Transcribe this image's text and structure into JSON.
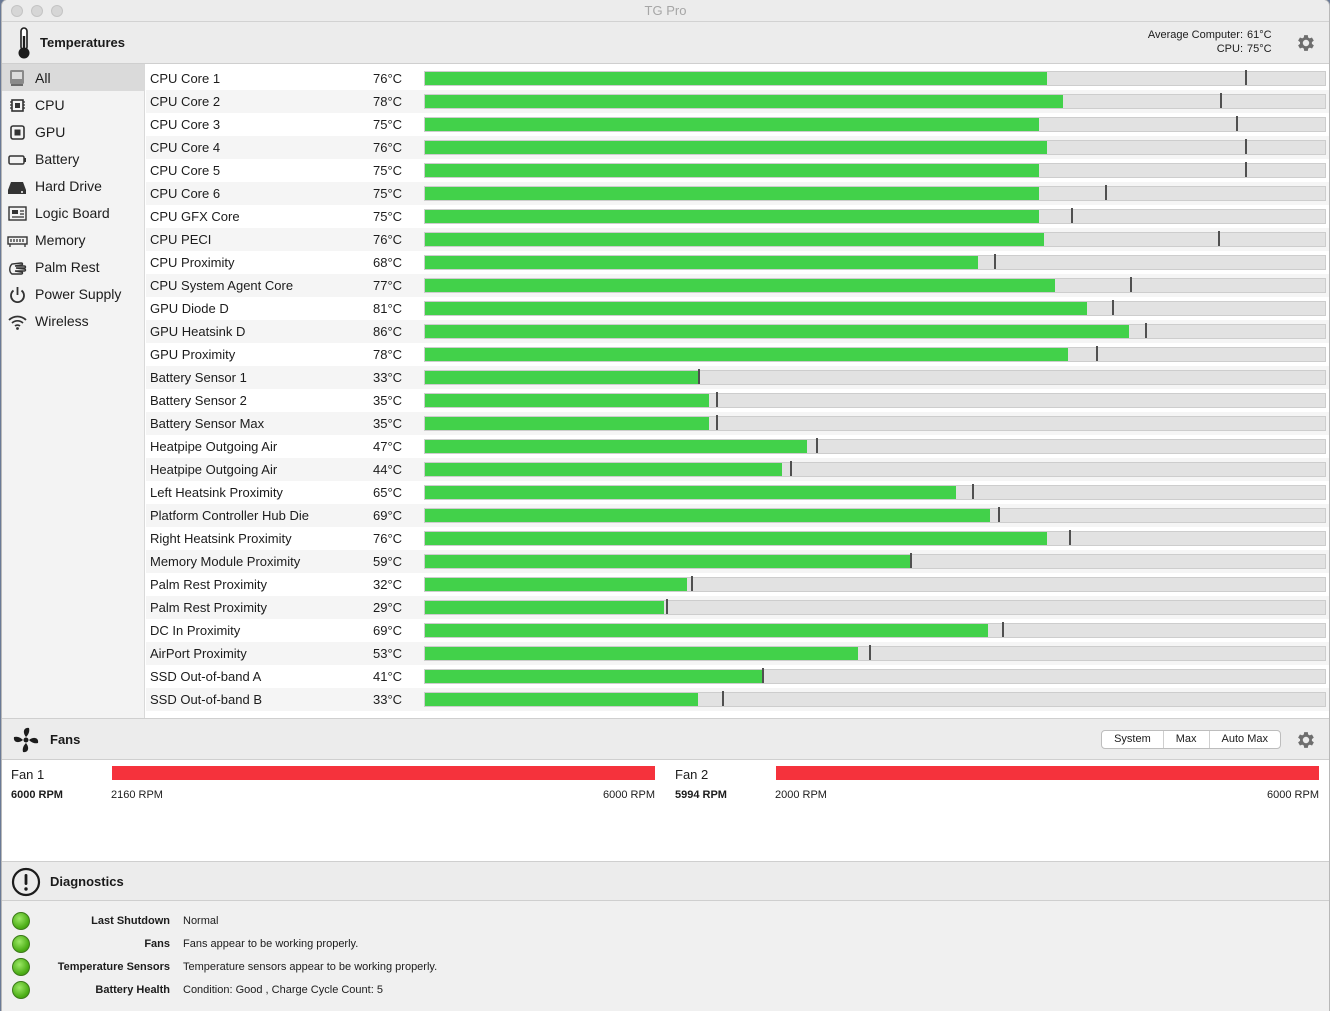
{
  "window": {
    "title": "TG Pro"
  },
  "temperatures": {
    "title": "Temperatures",
    "average_label": "Average Computer:",
    "average_value": "61°C",
    "cpu_label": "CPU:",
    "cpu_value": "75°C"
  },
  "sidebar": {
    "items": [
      {
        "label": "All",
        "icon": "computer-icon"
      },
      {
        "label": "CPU",
        "icon": "cpu-chip-icon"
      },
      {
        "label": "GPU",
        "icon": "gpu-chip-icon"
      },
      {
        "label": "Battery",
        "icon": "battery-icon"
      },
      {
        "label": "Hard Drive",
        "icon": "hard-drive-icon"
      },
      {
        "label": "Logic Board",
        "icon": "logic-board-icon"
      },
      {
        "label": "Memory",
        "icon": "memory-icon"
      },
      {
        "label": "Palm Rest",
        "icon": "palm-rest-icon"
      },
      {
        "label": "Power Supply",
        "icon": "power-icon"
      },
      {
        "label": "Wireless",
        "icon": "wifi-icon"
      }
    ]
  },
  "sensors": [
    {
      "name": "CPU Core 1",
      "value": "76°C",
      "fill": 0.691,
      "mark": 0.911
    },
    {
      "name": "CPU Core 2",
      "value": "78°C",
      "fill": 0.709,
      "mark": 0.883
    },
    {
      "name": "CPU Core 3",
      "value": "75°C",
      "fill": 0.682,
      "mark": 0.901
    },
    {
      "name": "CPU Core 4",
      "value": "76°C",
      "fill": 0.691,
      "mark": 0.911
    },
    {
      "name": "CPU Core 5",
      "value": "75°C",
      "fill": 0.682,
      "mark": 0.911
    },
    {
      "name": "CPU Core 6",
      "value": "75°C",
      "fill": 0.682,
      "mark": 0.755
    },
    {
      "name": "CPU GFX Core",
      "value": "75°C",
      "fill": 0.682,
      "mark": 0.718
    },
    {
      "name": "CPU PECI",
      "value": "76°C",
      "fill": 0.688,
      "mark": 0.881
    },
    {
      "name": "CPU Proximity",
      "value": "68°C",
      "fill": 0.614,
      "mark": 0.632
    },
    {
      "name": "CPU System Agent Core",
      "value": "77°C",
      "fill": 0.7,
      "mark": 0.783
    },
    {
      "name": "GPU Diode D",
      "value": "81°C",
      "fill": 0.736,
      "mark": 0.763
    },
    {
      "name": "GPU Heatsink D",
      "value": "86°C",
      "fill": 0.782,
      "mark": 0.8
    },
    {
      "name": "GPU Proximity",
      "value": "78°C",
      "fill": 0.714,
      "mark": 0.745
    },
    {
      "name": "Battery Sensor 1",
      "value": "33°C",
      "fill": 0.303,
      "mark": 0.303
    },
    {
      "name": "Battery Sensor 2",
      "value": "35°C",
      "fill": 0.315,
      "mark": 0.323
    },
    {
      "name": "Battery Sensor Max",
      "value": "35°C",
      "fill": 0.315,
      "mark": 0.323
    },
    {
      "name": "Heatpipe Outgoing Air",
      "value": "47°C",
      "fill": 0.424,
      "mark": 0.434
    },
    {
      "name": "Heatpipe Outgoing Air",
      "value": "44°C",
      "fill": 0.397,
      "mark": 0.406
    },
    {
      "name": "Left Heatsink Proximity",
      "value": "65°C",
      "fill": 0.59,
      "mark": 0.608
    },
    {
      "name": "Platform Controller Hub Die",
      "value": "69°C",
      "fill": 0.628,
      "mark": 0.637
    },
    {
      "name": "Right Heatsink Proximity",
      "value": "76°C",
      "fill": 0.691,
      "mark": 0.715
    },
    {
      "name": "Memory Module Proximity",
      "value": "59°C",
      "fill": 0.539,
      "mark": 0.539
    },
    {
      "name": "Palm Rest Proximity",
      "value": "32°C",
      "fill": 0.291,
      "mark": 0.295
    },
    {
      "name": "Palm Rest Proximity",
      "value": "29°C",
      "fill": 0.265,
      "mark": 0.268
    },
    {
      "name": "DC In Proximity",
      "value": "69°C",
      "fill": 0.625,
      "mark": 0.641
    },
    {
      "name": "AirPort Proximity",
      "value": "53°C",
      "fill": 0.481,
      "mark": 0.493
    },
    {
      "name": "SSD Out-of-band A",
      "value": "41°C",
      "fill": 0.374,
      "mark": 0.374
    },
    {
      "name": "SSD Out-of-band B",
      "value": "33°C",
      "fill": 0.303,
      "mark": 0.33
    }
  ],
  "fans": {
    "title": "Fans",
    "modes": [
      "System",
      "Max",
      "Auto Max"
    ],
    "items": [
      {
        "name": "Fan 1",
        "rpm": "6000 RPM",
        "min": "2160 RPM",
        "max": "6000 RPM",
        "fill": 1.0
      },
      {
        "name": "Fan 2",
        "rpm": "5994 RPM",
        "min": "2000 RPM",
        "max": "6000 RPM",
        "fill": 1.0
      }
    ]
  },
  "diagnostics": {
    "title": "Diagnostics",
    "rows": [
      {
        "label": "Last Shutdown",
        "value": "Normal",
        "status_color": "#4cae16"
      },
      {
        "label": "Fans",
        "value": "Fans appear to be working properly.",
        "status_color": "#4cae16"
      },
      {
        "label": "Temperature Sensors",
        "value": "Temperature sensors appear to be working properly.",
        "status_color": "#4cae16"
      },
      {
        "label": "Battery Health",
        "value": "Condition: Good , Charge Cycle Count: 5",
        "status_color": "#4cae16"
      }
    ]
  },
  "colors": {
    "temp_bar": "#42d14a",
    "fan_bar": "#f5323c",
    "track": "#e2e2e2"
  }
}
